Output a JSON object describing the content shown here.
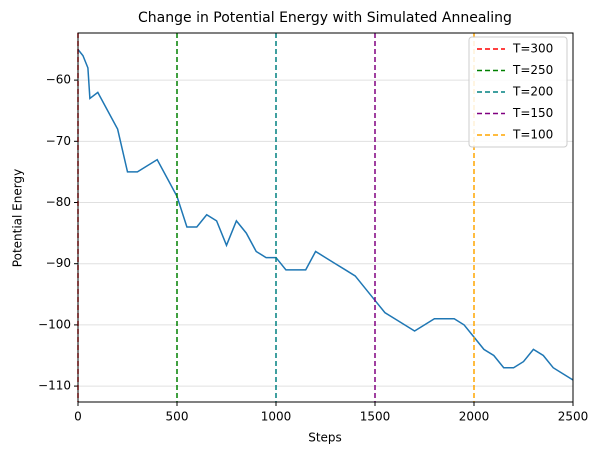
{
  "chart_data": {
    "type": "line",
    "title": "Change in Potential Energy with Simulated Annealing",
    "xlabel": "Steps",
    "ylabel": "Potential Energy",
    "x": [
      0,
      25,
      50,
      60,
      100,
      150,
      200,
      250,
      300,
      350,
      400,
      450,
      500,
      550,
      600,
      650,
      700,
      750,
      800,
      850,
      900,
      950,
      1000,
      1050,
      1100,
      1150,
      1200,
      1250,
      1300,
      1350,
      1400,
      1450,
      1500,
      1550,
      1600,
      1650,
      1700,
      1750,
      1800,
      1850,
      1900,
      1950,
      2000,
      2050,
      2100,
      2150,
      2200,
      2250,
      2300,
      2350,
      2400,
      2450,
      2500
    ],
    "values": [
      -55,
      -56,
      -58,
      -63,
      -62,
      -65,
      -68,
      -75,
      -75,
      -74,
      -73,
      -76,
      -79,
      -84,
      -84,
      -82,
      -83,
      -87,
      -83,
      -85,
      -88,
      -89,
      -89,
      -91,
      -91,
      -91,
      -88,
      -89,
      -90,
      -91,
      -92,
      -94,
      -96,
      -98,
      -99,
      -100,
      -101,
      -100,
      -99,
      -99,
      -99,
      -100,
      -102,
      -104,
      -105,
      -107,
      -107,
      -106,
      -104,
      -105,
      -107,
      -108,
      -109
    ],
    "color": "#1f77b4",
    "vlines": [
      {
        "name": "T=300",
        "x": 0,
        "color": "#ff0000"
      },
      {
        "name": "T=250",
        "x": 500,
        "color": "#008000"
      },
      {
        "name": "T=200",
        "x": 1000,
        "color": "#008080"
      },
      {
        "name": "T=150",
        "x": 1500,
        "color": "#800080"
      },
      {
        "name": "T=100",
        "x": 2000,
        "color": "#ffa500"
      }
    ],
    "xlim": [
      0,
      2500
    ],
    "xticks": [
      0,
      500,
      1000,
      1500,
      2000,
      2500
    ],
    "ylim": [
      -112.6,
      -52.3
    ],
    "yticks": [
      {
        "value": -110,
        "label": "−110"
      },
      {
        "value": -100,
        "label": "−100"
      },
      {
        "value": -90,
        "label": "−90"
      },
      {
        "value": -80,
        "label": "−80"
      },
      {
        "value": -70,
        "label": "−70"
      },
      {
        "value": -60,
        "label": "−60"
      }
    ],
    "grid": true,
    "legend": "upper right"
  }
}
